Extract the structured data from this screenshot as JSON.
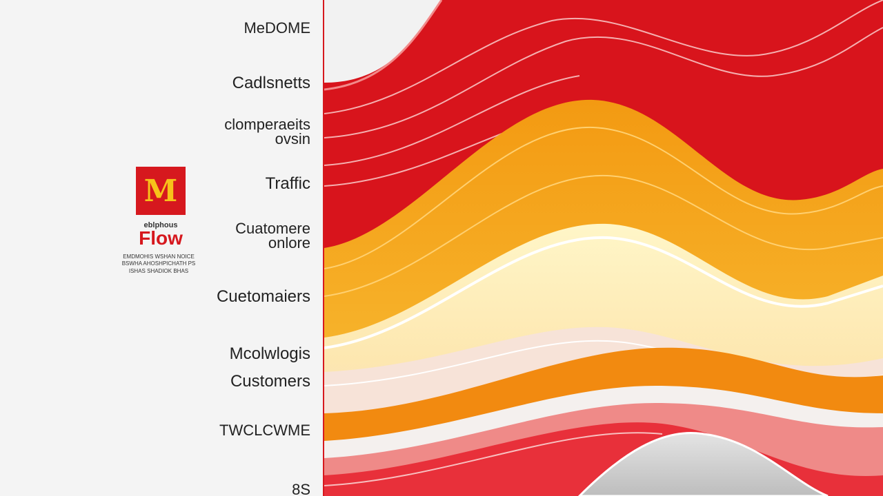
{
  "labels": [
    "MeDOME",
    "Cadlsnetts",
    "clomperaeits",
    "ovsin",
    "Traffic",
    "Cuatomere",
    "onlore",
    "Cuetomaiers",
    "Mcolwlogis",
    "Customers",
    "TWCLCWME",
    "8S"
  ],
  "logo": {
    "mark": "M",
    "subtitle": "eblphous",
    "title": "Flow",
    "lines": [
      "EMDMOHIS WSHAN NOICE",
      "BSWHA AHOSHPICHATH PS",
      "ISHAS SHADIOK BHAS"
    ]
  }
}
